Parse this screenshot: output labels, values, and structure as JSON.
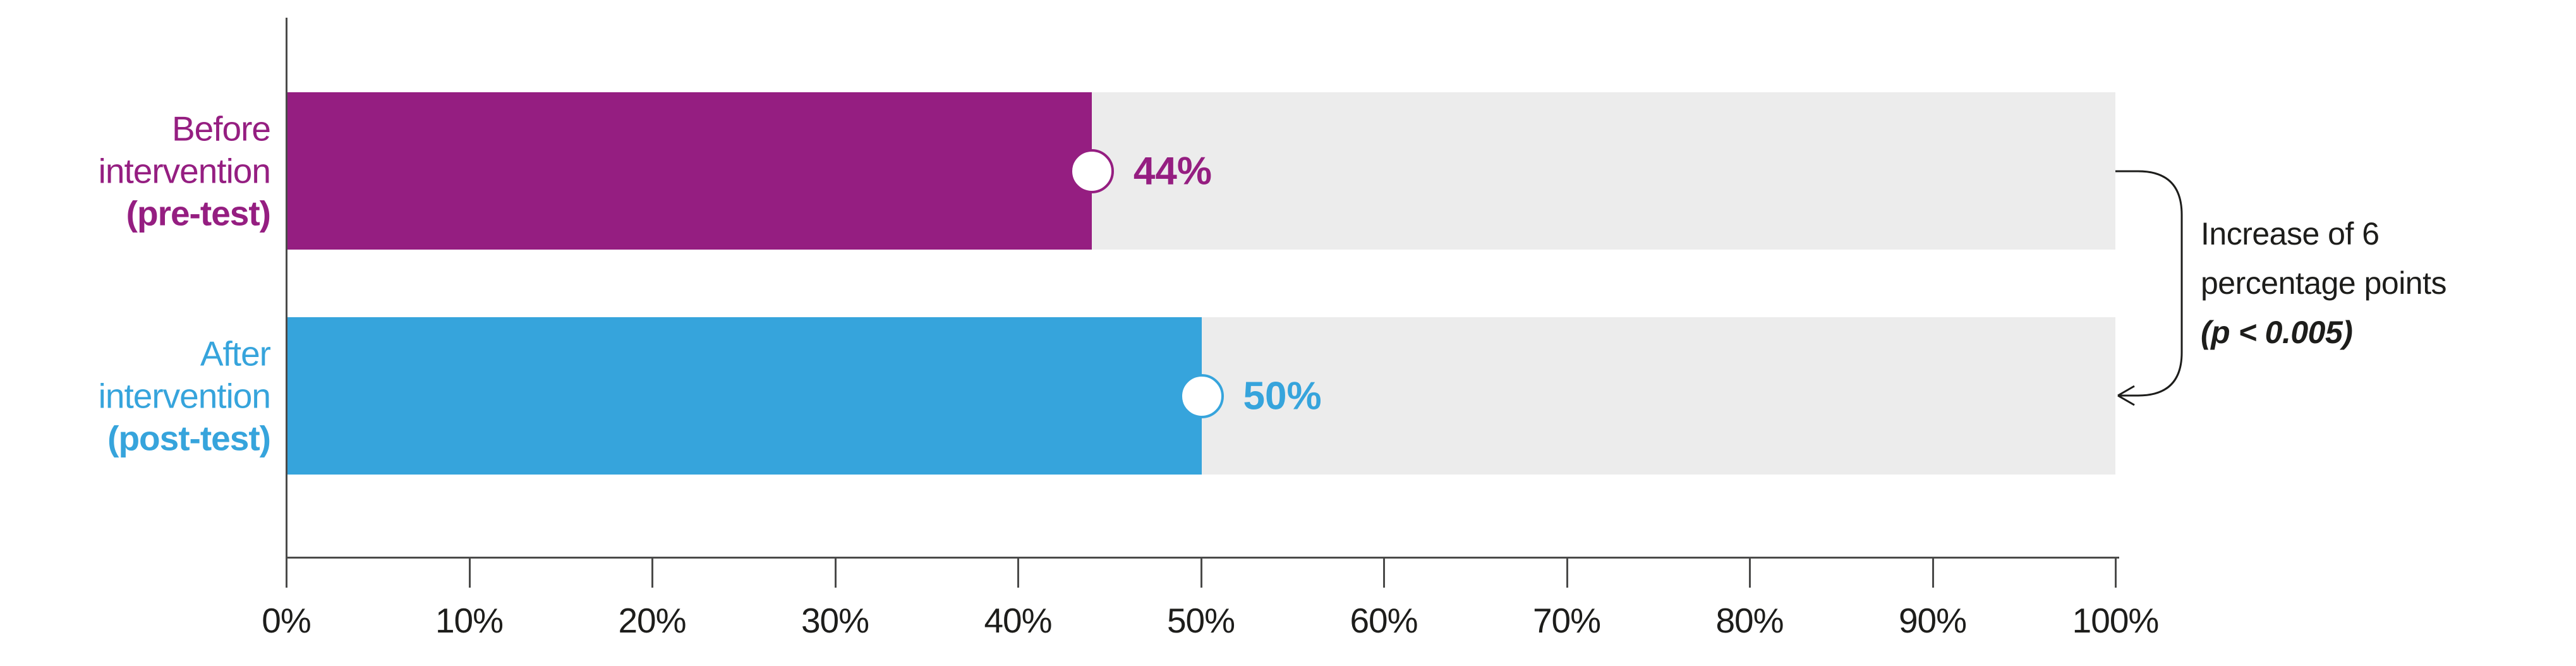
{
  "chart_data": {
    "type": "bar",
    "orientation": "horizontal",
    "categories": [
      "Before intervention (pre-test)",
      "After intervention (post-test)"
    ],
    "values": [
      44,
      50
    ],
    "value_labels": [
      "44%",
      "50%"
    ],
    "unit": "%",
    "xlim": [
      0,
      100
    ],
    "x_tick_labels": [
      "0%",
      "10%",
      "20%",
      "30%",
      "40%",
      "50%",
      "60%",
      "70%",
      "80%",
      "90%",
      "100%"
    ],
    "grid": false,
    "legend": "none",
    "annotation": "Increase of 6 percentage points (p < 0.005)"
  },
  "bars": [
    {
      "label_lines": [
        "Before",
        "intervention"
      ],
      "label_bold": "(pre-test)",
      "value": 44,
      "value_label": "44%",
      "color": "#951e81"
    },
    {
      "label_lines": [
        "After",
        "intervention"
      ],
      "label_bold": "(post-test)",
      "value": 50,
      "value_label": "50%",
      "color": "#36a4dc"
    }
  ],
  "annotation": {
    "line1": "Increase of 6",
    "line2": "percentage points",
    "line3": "(p < 0.005)"
  },
  "colors": {
    "track": "#ececec",
    "axis": "#4a4a49",
    "text": "#1d1d1b",
    "marker_fill": "#ffffff"
  }
}
